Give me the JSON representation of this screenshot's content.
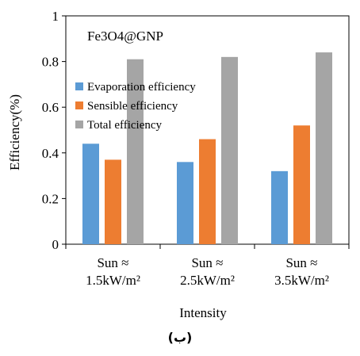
{
  "chart_data": {
    "type": "bar",
    "title": "Fe3O4@GNP",
    "xlabel": "Intensity",
    "ylabel": "Efficiency(%)",
    "ylim": [
      0,
      1
    ],
    "yticks": [
      "0",
      "0.2",
      "0.4",
      "0.6",
      "0.8",
      "1"
    ],
    "grid": false,
    "legend_placement": "upper-left",
    "categories": [
      [
        "Sun ≈",
        "1.5kW/m²"
      ],
      [
        "Sun ≈",
        "2.5kW/m²"
      ],
      [
        "Sun ≈",
        "3.5kW/m²"
      ]
    ],
    "series": [
      {
        "name": "Evaporation efficiency",
        "color": "#5b9bd5",
        "values": [
          0.44,
          0.36,
          0.32
        ]
      },
      {
        "name": "Sensible efficiency",
        "color": "#ed7d31",
        "values": [
          0.37,
          0.46,
          0.52
        ]
      },
      {
        "name": "Total efficiency",
        "color": "#a5a5a5",
        "values": [
          0.81,
          0.82,
          0.84
        ]
      }
    ]
  },
  "caption": "(ب)"
}
